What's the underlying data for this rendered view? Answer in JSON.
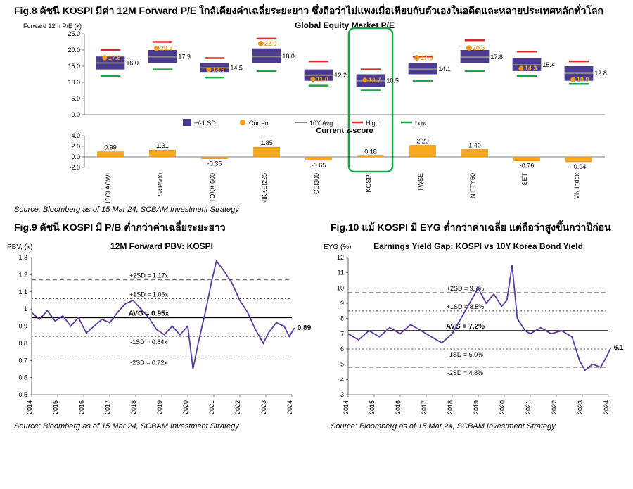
{
  "fig8": {
    "title": "Fig.8 ดัชนี KOSPI มีค่า 12M Forward P/E ใกล้เคียงค่าเฉลี่ยระยะยาว ซึ่งถือว่าไม่แพงเมื่อเทียบกับตัวเองในอดีตและหลายประเทศหลักทั่วโลก",
    "source": "Source: Bloomberg as of 15 Mar 24, SCBAM Investment Strategy",
    "pe_chart": {
      "title": "Global Equity Market P/E",
      "ylabel": "Forward 12m P/E (x)",
      "ylim": [
        0,
        25
      ],
      "yticks": [
        0,
        5,
        10,
        15,
        20,
        25
      ],
      "categories": [
        "MSCI ACWI",
        "S&P500",
        "STOXX 600",
        "NIKKEI225",
        "CSI300",
        "KOSPI",
        "TWSE",
        "NIFTY50",
        "SET",
        "VN Index"
      ],
      "avg10y": [
        16.0,
        17.9,
        14.5,
        18.0,
        12.2,
        10.5,
        14.1,
        17.8,
        15.4,
        12.8
      ],
      "sd_top": [
        18.0,
        20.0,
        16.0,
        20.5,
        14.0,
        12.5,
        16.0,
        20.0,
        17.5,
        15.0
      ],
      "sd_bot": [
        14.0,
        16.0,
        13.0,
        16.0,
        10.5,
        8.5,
        12.5,
        16.0,
        13.5,
        10.5
      ],
      "high": [
        20.0,
        22.5,
        17.5,
        23.5,
        16.5,
        14.0,
        18.0,
        23.0,
        19.5,
        16.5
      ],
      "low": [
        12.0,
        14.0,
        11.5,
        13.5,
        9.0,
        7.5,
        10.5,
        13.5,
        12.0,
        9.5
      ],
      "current": [
        17.6,
        20.5,
        13.9,
        22.0,
        11.0,
        10.7,
        17.6,
        20.6,
        14.3,
        10.9
      ],
      "current_labels": [
        "17.6",
        "20.5",
        "13.9",
        "22.0",
        "11.0",
        "10.7",
        "17.6",
        "20.6",
        "14.3",
        "10.9"
      ],
      "avg_labels": [
        "16.0",
        "17.9",
        "14.5",
        "18.0",
        "12.2",
        "10.5",
        "14.1",
        "17.8",
        "15.4",
        "12.8"
      ],
      "highlight_index": 5,
      "colors": {
        "sd_box": "#4a3b8f",
        "current": "#f79b1e",
        "avg_line": "#888888",
        "high": "#d62c2c",
        "low": "#1fa24a",
        "highlight_box": "#1fa24a"
      },
      "legend": [
        "+/-1 SD",
        "Current",
        "10Y Avg",
        "High",
        "Low"
      ]
    },
    "zscore_chart": {
      "title": "Current z-score",
      "ylim": [
        -2,
        4
      ],
      "yticks": [
        -2,
        0,
        2,
        4
      ],
      "values": [
        0.99,
        1.31,
        -0.35,
        1.85,
        -0.65,
        0.18,
        2.2,
        1.4,
        -0.76,
        -0.94
      ],
      "labels": [
        "0.99",
        "1.31",
        "-0.35",
        "1.85",
        "-0.65",
        "0.18",
        "2.20",
        "1.40",
        "-0.76",
        "-0.94"
      ],
      "bar_color": "#f7a81e",
      "bar_border": "#d18a0e"
    }
  },
  "fig9": {
    "title": "Fig.9 ดัชนี KOSPI มี P/B ต่ำกว่าค่าเฉลี่ยระยะยาว",
    "source": "Source: Bloomberg as of 15 Mar 24, SCBAM Investment Strategy",
    "ylabel": "PBV, (x)",
    "chart_title": "12M Forward PBV: KOSPI",
    "ylim": [
      0.5,
      1.3
    ],
    "yticks": [
      0.5,
      0.6,
      0.7,
      0.8,
      0.9,
      1.0,
      1.1,
      1.2,
      1.3
    ],
    "xlim": [
      2014,
      2024
    ],
    "xticks": [
      2014,
      2015,
      2016,
      2017,
      2018,
      2019,
      2020,
      2021,
      2022,
      2023,
      2024
    ],
    "avg": 0.95,
    "avg_label": "AVG = 0.95x",
    "p2sd": 1.17,
    "p2sd_label": "+2SD = 1.17x",
    "p1sd": 1.06,
    "p1sd_label": "+1SD = 1.06x",
    "m1sd": 0.84,
    "m1sd_label": "-1SD = 0.84x",
    "m2sd": 0.72,
    "m2sd_label": "-2SD = 0.72x",
    "last_label": "0.89",
    "line_color": "#5a3b9e",
    "series": [
      [
        2014.0,
        0.98
      ],
      [
        2014.3,
        0.94
      ],
      [
        2014.6,
        0.99
      ],
      [
        2014.9,
        0.93
      ],
      [
        2015.2,
        0.96
      ],
      [
        2015.5,
        0.9
      ],
      [
        2015.8,
        0.95
      ],
      [
        2016.1,
        0.86
      ],
      [
        2016.4,
        0.9
      ],
      [
        2016.7,
        0.94
      ],
      [
        2017.0,
        0.92
      ],
      [
        2017.3,
        0.98
      ],
      [
        2017.6,
        1.03
      ],
      [
        2017.9,
        1.05
      ],
      [
        2018.2,
        1.0
      ],
      [
        2018.5,
        0.95
      ],
      [
        2018.8,
        0.88
      ],
      [
        2019.1,
        0.85
      ],
      [
        2019.4,
        0.9
      ],
      [
        2019.7,
        0.85
      ],
      [
        2020.0,
        0.9
      ],
      [
        2020.2,
        0.65
      ],
      [
        2020.4,
        0.8
      ],
      [
        2020.7,
        1.0
      ],
      [
        2020.9,
        1.15
      ],
      [
        2021.1,
        1.28
      ],
      [
        2021.4,
        1.22
      ],
      [
        2021.7,
        1.15
      ],
      [
        2022.0,
        1.05
      ],
      [
        2022.3,
        0.98
      ],
      [
        2022.6,
        0.88
      ],
      [
        2022.9,
        0.8
      ],
      [
        2023.1,
        0.86
      ],
      [
        2023.4,
        0.92
      ],
      [
        2023.7,
        0.9
      ],
      [
        2023.9,
        0.84
      ],
      [
        2024.1,
        0.89
      ]
    ]
  },
  "fig10": {
    "title": "Fig.10 แม้ KOSPI มี EYG ต่ำกว่าค่าเฉลี่ย แต่ถือว่าสูงขึ้นกว่าปีก่อน",
    "source": "Source: Bloomberg as of 15 Mar 24, SCBAM Investment Strategy",
    "ylabel": "EYG (%)",
    "chart_title": "Earnings Yield Gap: KOSPI vs 10Y Korea Bond Yield",
    "ylim": [
      3,
      12
    ],
    "yticks": [
      3,
      4,
      5,
      6,
      7,
      8,
      9,
      10,
      11,
      12
    ],
    "xlim": [
      2014,
      2024
    ],
    "xticks": [
      2014,
      2015,
      2016,
      2017,
      2018,
      2019,
      2020,
      2021,
      2022,
      2023,
      2024
    ],
    "avg": 7.2,
    "avg_label": "AVG = 7.2%",
    "p2sd": 9.7,
    "p2sd_label": "+2SD = 9.7%",
    "p1sd": 8.5,
    "p1sd_label": "+1SD = 8.5%",
    "m1sd": 6.0,
    "m1sd_label": "-1SD = 6.0%",
    "m2sd": 4.8,
    "m2sd_label": "-2SD = 4.8%",
    "last_label": "6.1",
    "line_color": "#5a3b9e",
    "series": [
      [
        2014.0,
        7.0
      ],
      [
        2014.4,
        6.6
      ],
      [
        2014.8,
        7.2
      ],
      [
        2015.2,
        6.8
      ],
      [
        2015.6,
        7.4
      ],
      [
        2016.0,
        7.0
      ],
      [
        2016.4,
        7.6
      ],
      [
        2016.8,
        7.2
      ],
      [
        2017.2,
        6.8
      ],
      [
        2017.6,
        6.4
      ],
      [
        2018.0,
        7.0
      ],
      [
        2018.4,
        8.2
      ],
      [
        2018.8,
        9.4
      ],
      [
        2019.0,
        10.0
      ],
      [
        2019.3,
        9.0
      ],
      [
        2019.6,
        9.6
      ],
      [
        2019.9,
        8.8
      ],
      [
        2020.1,
        9.2
      ],
      [
        2020.3,
        11.5
      ],
      [
        2020.5,
        8.0
      ],
      [
        2020.8,
        7.2
      ],
      [
        2021.0,
        7.0
      ],
      [
        2021.4,
        7.4
      ],
      [
        2021.8,
        7.0
      ],
      [
        2022.2,
        7.2
      ],
      [
        2022.6,
        6.8
      ],
      [
        2022.9,
        5.2
      ],
      [
        2023.1,
        4.6
      ],
      [
        2023.4,
        5.0
      ],
      [
        2023.7,
        4.8
      ],
      [
        2023.9,
        5.4
      ],
      [
        2024.1,
        6.1
      ]
    ]
  }
}
